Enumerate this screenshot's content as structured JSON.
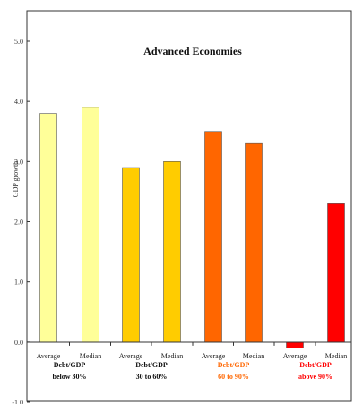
{
  "chart_data": {
    "type": "bar",
    "title": "Advanced Economies",
    "ylabel": "GDP growth",
    "xlabel": "",
    "ylim": [
      -1.0,
      5.0
    ],
    "yticks": [
      "5.0",
      "4.0",
      "3.0",
      "2.0",
      "1.0",
      "0.0",
      "-1.0"
    ],
    "grid": false,
    "legend": "none",
    "categories": [
      "Average",
      "Median",
      "Average",
      "Median",
      "Average",
      "Median",
      "Average",
      "Median"
    ],
    "values": [
      3.8,
      3.9,
      2.9,
      3.0,
      3.5,
      3.3,
      -0.1,
      2.3
    ],
    "colors": [
      "#FFFF99",
      "#FFFF99",
      "#FFCC00",
      "#FFCC00",
      "#FF6600",
      "#FF6600",
      "#FF0000",
      "#FF0000"
    ],
    "groups": [
      {
        "line1": "Debt/GDP",
        "line2": "below 30%",
        "color": "#111111"
      },
      {
        "line1": "Debt/GDP",
        "line2": "30 to 60%",
        "color": "#111111"
      },
      {
        "line1": "Debt/GDP",
        "line2": "60 to 90%",
        "color": "#FF6600"
      },
      {
        "line1": "Debt/GDP",
        "line2": "above 90%",
        "color": "#FF0000"
      }
    ]
  }
}
